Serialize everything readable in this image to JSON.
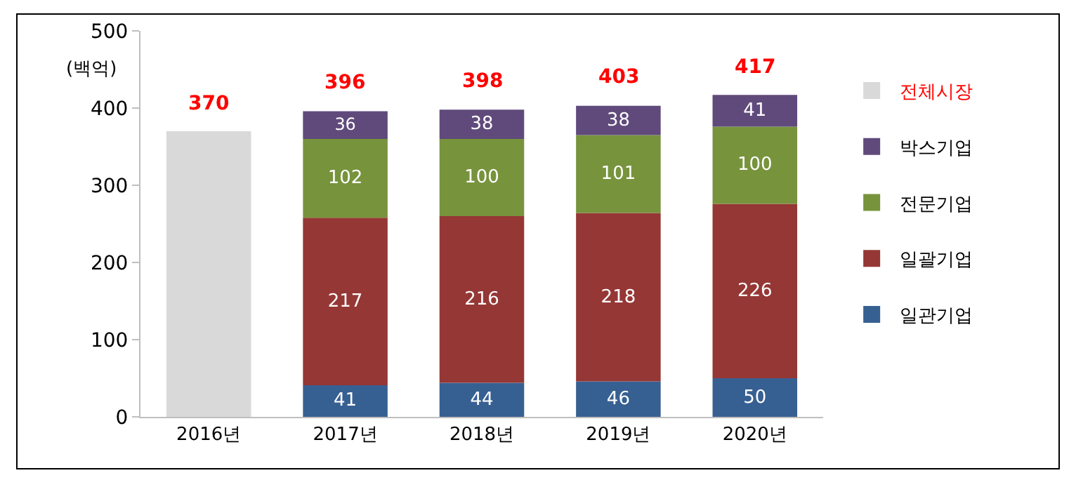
{
  "chart_data": {
    "type": "bar",
    "ylabel": "(백억)",
    "categories": [
      "2016년",
      "2017년",
      "2018년",
      "2019년",
      "2020년"
    ],
    "ylim": [
      0,
      500
    ],
    "yticks": [
      0,
      100,
      200,
      300,
      400,
      500
    ],
    "legend": "right",
    "stacked": true,
    "totals": [
      "370",
      "396",
      "398",
      "403",
      "417"
    ],
    "series": [
      {
        "name": "전체시장",
        "color": "#d9d9d9",
        "values": [
          370,
          null,
          null,
          null,
          null
        ],
        "value_labels": [
          null,
          null,
          null,
          null,
          null
        ]
      },
      {
        "name": "일관기업",
        "color": "#376092",
        "values": [
          null,
          41,
          44,
          46,
          50
        ],
        "value_labels": [
          null,
          "41",
          "44",
          "46",
          "50"
        ]
      },
      {
        "name": "일괄기업",
        "color": "#953735",
        "values": [
          null,
          217,
          216,
          218,
          226
        ],
        "value_labels": [
          null,
          "217",
          "216",
          "218",
          "226"
        ]
      },
      {
        "name": "전문기업",
        "color": "#77933c",
        "values": [
          null,
          102,
          100,
          101,
          100
        ],
        "value_labels": [
          null,
          "102",
          "100",
          "101",
          "100"
        ]
      },
      {
        "name": "박스기업",
        "color": "#604a7b",
        "values": [
          null,
          36,
          38,
          38,
          41
        ],
        "value_labels": [
          null,
          "36",
          "38",
          "38",
          "41"
        ]
      }
    ]
  }
}
